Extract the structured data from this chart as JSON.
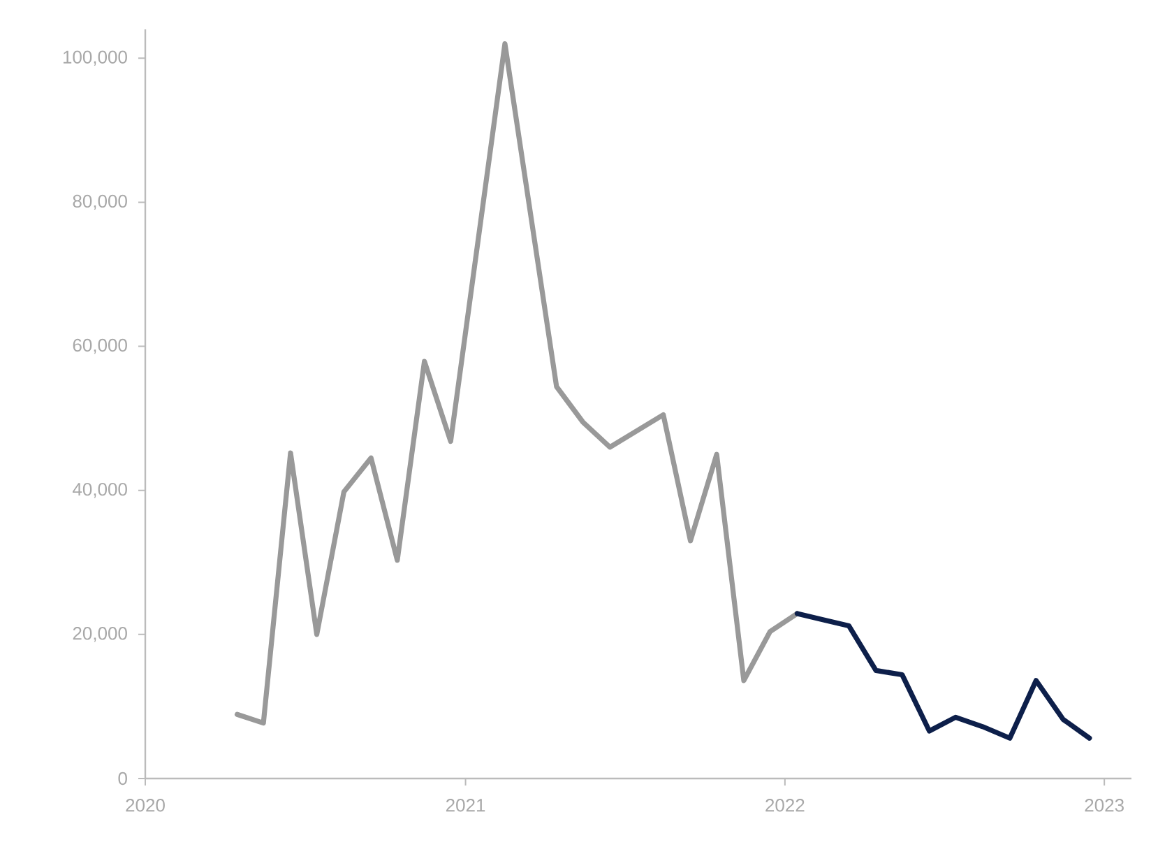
{
  "chart_data": {
    "type": "line",
    "xlim": [
      "2020-01-01",
      "2023-02-01"
    ],
    "xticks": [
      "2020",
      "2021",
      "2022",
      "2023"
    ],
    "ylim": [
      0,
      104000
    ],
    "yticks": [
      0,
      {
        "value": 20000,
        "label": "20,000"
      },
      {
        "value": 40000,
        "label": "40,000"
      },
      {
        "value": 60000,
        "label": "60,000"
      },
      {
        "value": 80000,
        "label": "80,000"
      },
      {
        "value": 100000,
        "label": "100,000"
      }
    ],
    "grid": false,
    "legend": false,
    "marker": "none",
    "line_style": "solid",
    "series": [
      {
        "color": "#999999",
        "x": [
          "2020-04-15",
          "2020-05-15",
          "2020-06-15",
          "2020-07-15",
          "2020-08-15",
          "2020-09-15",
          "2020-10-15",
          "2020-11-15",
          "2020-12-15",
          "2021-02-15",
          "2021-04-15",
          "2021-05-15",
          "2021-06-15",
          "2021-08-15",
          "2021-09-15",
          "2021-10-15",
          "2021-11-15",
          "2021-12-15",
          "2022-01-15"
        ],
        "values": [
          8900,
          7700,
          45200,
          20000,
          39800,
          44500,
          30300,
          57900,
          46800,
          102000,
          54400,
          49500,
          46000,
          50500,
          33000,
          45000,
          13600,
          20400,
          22900
        ]
      },
      {
        "color": "#0d1f4a",
        "x": [
          "2022-01-15",
          "2022-02-15",
          "2022-03-15",
          "2022-04-15",
          "2022-05-15",
          "2022-06-15",
          "2022-07-15",
          "2022-08-15",
          "2022-09-15",
          "2022-10-15",
          "2022-11-15",
          "2022-12-15"
        ],
        "values": [
          22900,
          22000,
          21200,
          15000,
          14400,
          6600,
          8500,
          7200,
          5600,
          13600,
          8200,
          5600
        ]
      }
    ]
  }
}
